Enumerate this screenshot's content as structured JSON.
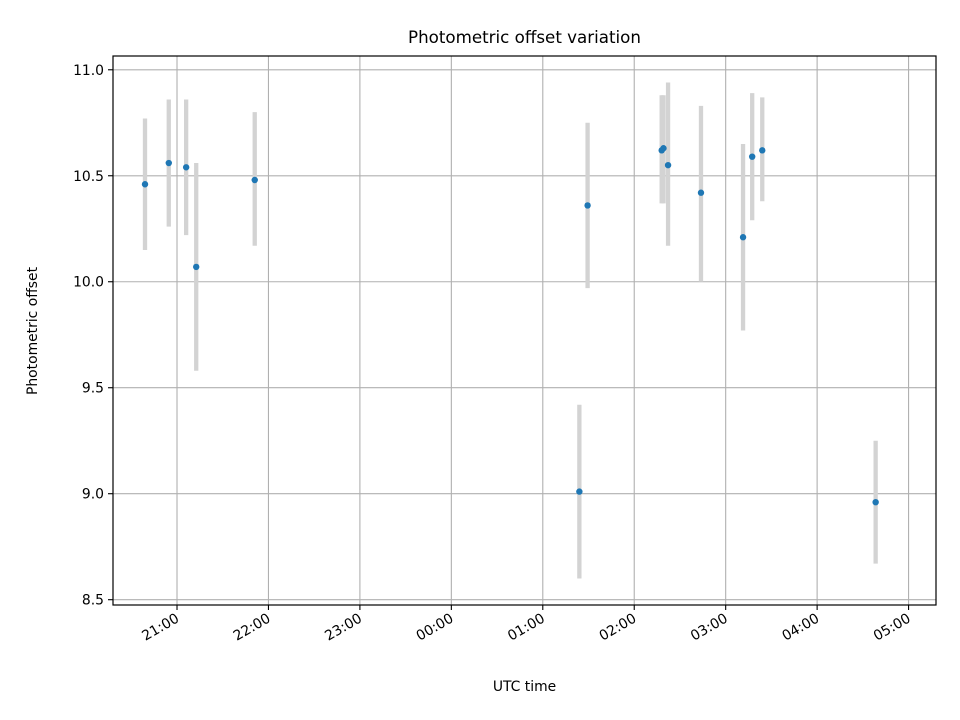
{
  "chart_data": {
    "type": "scatter",
    "title": "Photometric offset variation",
    "xlabel": "UTC time",
    "ylabel": "Photometric offset",
    "grid": true,
    "x_unit": "hours since 00:00 UTC",
    "xlim": [
      -3.7,
      5.3
    ],
    "ylim": [
      8.475,
      11.065
    ],
    "x_ticks": [
      {
        "value": -3,
        "label": "21:00"
      },
      {
        "value": -2,
        "label": "22:00"
      },
      {
        "value": -1,
        "label": "23:00"
      },
      {
        "value": 0,
        "label": "00:00"
      },
      {
        "value": 1,
        "label": "01:00"
      },
      {
        "value": 2,
        "label": "02:00"
      },
      {
        "value": 3,
        "label": "03:00"
      },
      {
        "value": 4,
        "label": "04:00"
      },
      {
        "value": 5,
        "label": "05:00"
      }
    ],
    "y_ticks": [
      {
        "value": 8.5,
        "label": "8.5"
      },
      {
        "value": 9.0,
        "label": "9.0"
      },
      {
        "value": 9.5,
        "label": "9.5"
      },
      {
        "value": 10.0,
        "label": "10.0"
      },
      {
        "value": 10.5,
        "label": "10.5"
      },
      {
        "value": 11.0,
        "label": "11.0"
      }
    ],
    "points": [
      {
        "x": -3.35,
        "y": 10.46,
        "err_low": 10.15,
        "err_high": 10.77
      },
      {
        "x": -3.09,
        "y": 10.56,
        "err_low": 10.26,
        "err_high": 10.86
      },
      {
        "x": -2.9,
        "y": 10.54,
        "err_low": 10.22,
        "err_high": 10.86
      },
      {
        "x": -2.79,
        "y": 10.07,
        "err_low": 9.58,
        "err_high": 10.56
      },
      {
        "x": -2.15,
        "y": 10.48,
        "err_low": 10.17,
        "err_high": 10.8
      },
      {
        "x": 1.4,
        "y": 9.01,
        "err_low": 8.6,
        "err_high": 9.42
      },
      {
        "x": 1.49,
        "y": 10.36,
        "err_low": 9.97,
        "err_high": 10.75
      },
      {
        "x": 2.3,
        "y": 10.62,
        "err_low": 10.37,
        "err_high": 10.88
      },
      {
        "x": 2.32,
        "y": 10.63,
        "err_low": 10.37,
        "err_high": 10.88
      },
      {
        "x": 2.37,
        "y": 10.55,
        "err_low": 10.17,
        "err_high": 10.94
      },
      {
        "x": 2.73,
        "y": 10.42,
        "err_low": 10.0,
        "err_high": 10.83
      },
      {
        "x": 3.19,
        "y": 10.21,
        "err_low": 9.77,
        "err_high": 10.65
      },
      {
        "x": 3.29,
        "y": 10.59,
        "err_low": 10.29,
        "err_high": 10.89
      },
      {
        "x": 3.4,
        "y": 10.62,
        "err_low": 10.38,
        "err_high": 10.87
      },
      {
        "x": 4.64,
        "y": 8.96,
        "err_low": 8.67,
        "err_high": 9.25
      }
    ]
  },
  "colors": {
    "marker": "#1f77b4",
    "errorbar": "#d3d3d3",
    "grid": "#b0b0b0",
    "axes": "#000000"
  }
}
